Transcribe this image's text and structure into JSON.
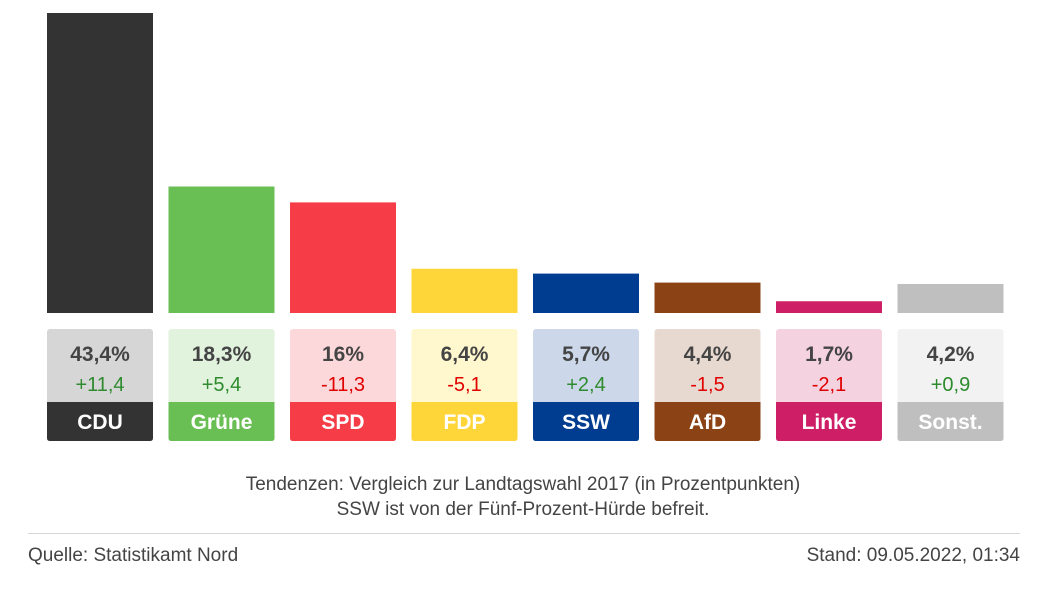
{
  "chart_data": {
    "type": "bar",
    "categories": [
      "CDU",
      "Grüne",
      "SPD",
      "FDP",
      "SSW",
      "AfD",
      "Linke",
      "Sonst."
    ],
    "value_labels": [
      "43,4%",
      "18,3%",
      "16%",
      "6,4%",
      "5,7%",
      "4,4%",
      "1,7%",
      "4,2%"
    ],
    "values": [
      43.4,
      18.3,
      16.0,
      6.4,
      5.7,
      4.4,
      1.7,
      4.2
    ],
    "change_labels": [
      "+11,4",
      "+5,4",
      "-11,3",
      "-5,1",
      "+2,4",
      "-1,5",
      "-2,1",
      "+0,9"
    ],
    "changes": [
      11.4,
      5.4,
      -11.3,
      -5.1,
      2.4,
      -1.5,
      -2.1,
      0.9
    ],
    "colors": [
      "#333333",
      "#6abf54",
      "#f63c47",
      "#ffd639",
      "#003c8f",
      "#8b4215",
      "#cd1e66",
      "#bfbfbf"
    ],
    "label_bg_colors": [
      "#d6d6d6",
      "#e1f2dd",
      "#fdd8da",
      "#fff7cd",
      "#ccd8e9",
      "#e8d9d0",
      "#f5d2e0",
      "#f2f2f2"
    ],
    "positive_color": "#2e8b2e",
    "negative_color": "#e00000",
    "ylim": [
      0,
      43.4
    ]
  },
  "notes": {
    "line1": "Tendenzen: Vergleich zur Landtagswahl 2017 (in Prozentpunkten)",
    "line2": "SSW ist von der Fünf-Prozent-Hürde befreit."
  },
  "footer": {
    "source": "Quelle: Statistikamt Nord",
    "stand": "Stand: 09.05.2022, 01:34"
  }
}
